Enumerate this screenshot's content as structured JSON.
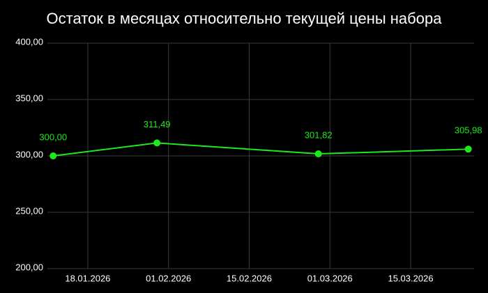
{
  "chart_data": {
    "type": "line",
    "title": "Остаток в месяцах относительно текущей цены набора",
    "x": [
      "2026-01-12",
      "2026-01-30",
      "2026-02-27",
      "2026-03-25"
    ],
    "series": [
      {
        "color": "#1ee81e",
        "values": [
          300.0,
          311.49,
          301.82,
          305.98
        ],
        "value_labels": [
          "300,00",
          "311,49",
          "301,82",
          "305,98"
        ]
      }
    ],
    "xlim": [
      "2026-01-11",
      "2026-03-26"
    ],
    "xticks": [
      {
        "value": "2026-01-18",
        "label": "18.01.2026"
      },
      {
        "value": "2026-02-01",
        "label": "01.02.2026"
      },
      {
        "value": "2026-02-15",
        "label": "15.02.2026"
      },
      {
        "value": "2026-03-01",
        "label": "01.03.2026"
      },
      {
        "value": "2026-03-15",
        "label": "15.03.2026"
      }
    ],
    "ylim": [
      200,
      400
    ],
    "yticks": [
      {
        "value": 200,
        "label": "200,00"
      },
      {
        "value": 250,
        "label": "250,00"
      },
      {
        "value": 300,
        "label": "300,00"
      },
      {
        "value": 350,
        "label": "350,00"
      },
      {
        "value": 400,
        "label": "400,00"
      }
    ],
    "grid": true
  }
}
